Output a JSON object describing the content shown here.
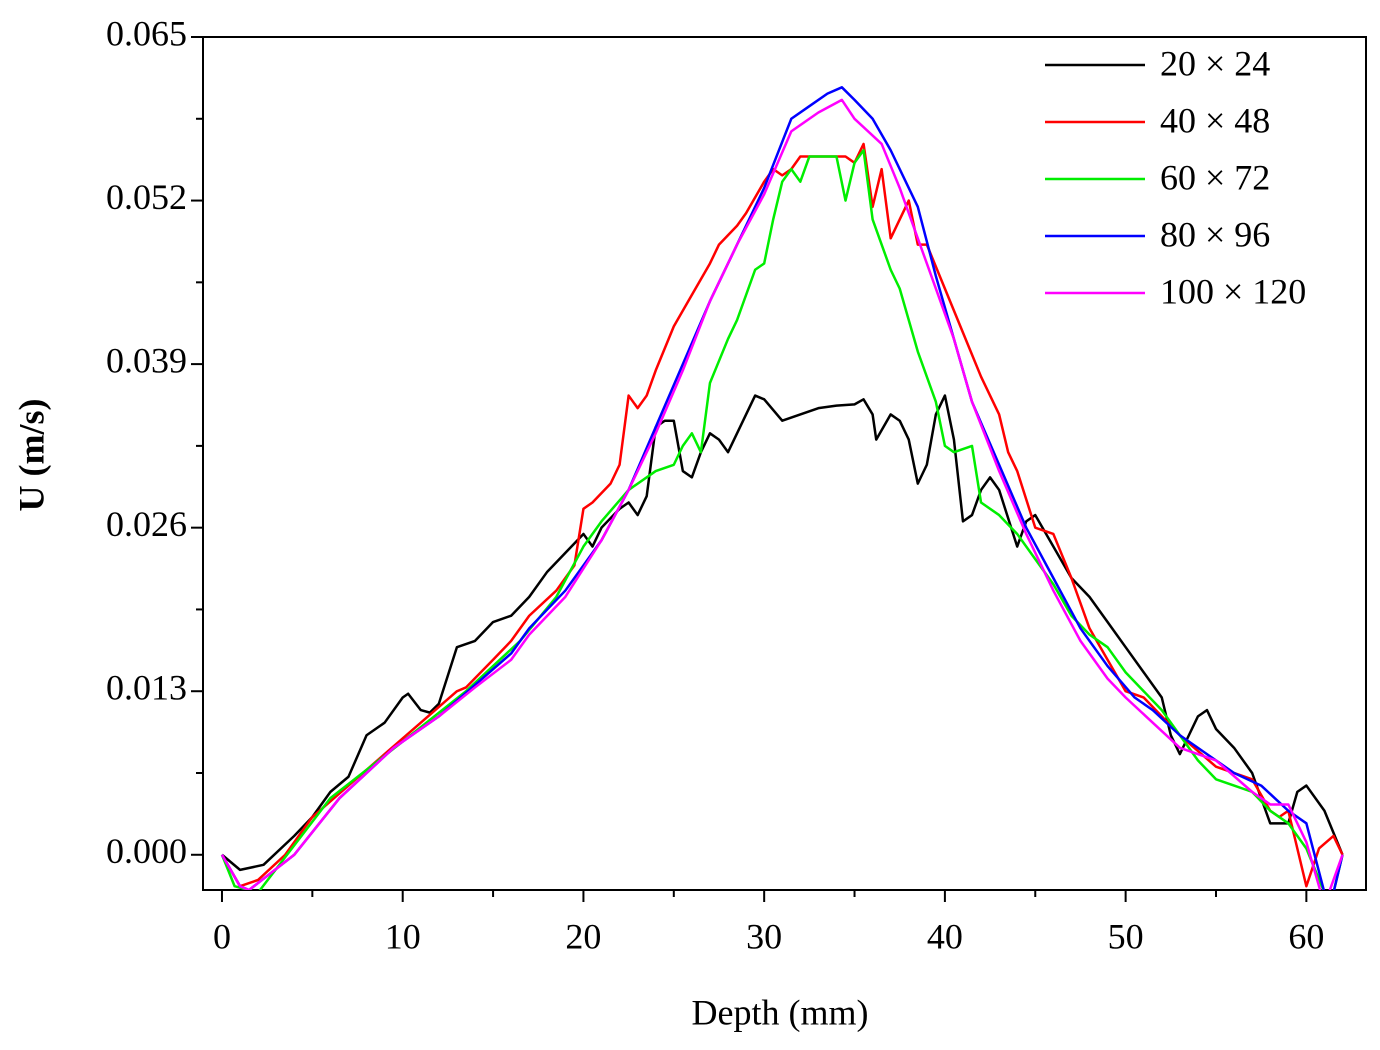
{
  "chart_data": {
    "type": "line",
    "xlabel": "Depth (mm)",
    "ylabel": "U (m/s)",
    "xlim": [
      -1.05,
      63.3
    ],
    "ylim": [
      -0.0028,
      0.065
    ],
    "xticks": [
      0,
      10,
      20,
      30,
      40,
      50,
      60
    ],
    "xticks_minor": [
      5,
      15,
      25,
      35,
      45,
      55
    ],
    "yticks": [
      {
        "value": 0,
        "label": "0.000"
      },
      0.013,
      0.026,
      0.039,
      0.052,
      0.065
    ],
    "yticks_minor": [
      0.0065,
      0.0195,
      0.0325,
      0.0455,
      0.0585
    ],
    "legend": "upper right",
    "series": [
      {
        "name": "20 × 24",
        "color": "#000000",
        "x": [
          0,
          1,
          2.3,
          4,
          5,
          6,
          7,
          8,
          9,
          10,
          10.3,
          11,
          11.5,
          12,
          13,
          14,
          15,
          16,
          17,
          18,
          19,
          20,
          20.5,
          21,
          22,
          22.5,
          23,
          23.5,
          24,
          24.5,
          25,
          25.5,
          26,
          26.5,
          27,
          27.5,
          28,
          29,
          29.5,
          30,
          31,
          32,
          33,
          34,
          35,
          35.5,
          36,
          36.2,
          37,
          37.5,
          38,
          38.5,
          39,
          39.5,
          40,
          40.5,
          41,
          41.5,
          42,
          42.5,
          43,
          44,
          44.5,
          45,
          46,
          47,
          48,
          49,
          50,
          51,
          52,
          52.5,
          53,
          54,
          54.5,
          55,
          56,
          57,
          58,
          59,
          59.5,
          60,
          61,
          62
        ],
        "values": [
          0,
          -0.0012,
          -0.0008,
          0.0015,
          0.003,
          0.005,
          0.0062,
          0.0095,
          0.0105,
          0.0125,
          0.0128,
          0.0115,
          0.0113,
          0.012,
          0.0165,
          0.017,
          0.0185,
          0.019,
          0.0205,
          0.0225,
          0.024,
          0.0255,
          0.0245,
          0.026,
          0.0275,
          0.028,
          0.027,
          0.0285,
          0.034,
          0.0345,
          0.0345,
          0.0305,
          0.03,
          0.032,
          0.0335,
          0.033,
          0.032,
          0.035,
          0.0365,
          0.0362,
          0.0345,
          0.035,
          0.0355,
          0.0357,
          0.0358,
          0.0362,
          0.035,
          0.033,
          0.035,
          0.0345,
          0.033,
          0.0295,
          0.031,
          0.035,
          0.0365,
          0.033,
          0.0265,
          0.027,
          0.029,
          0.03,
          0.029,
          0.0245,
          0.0265,
          0.027,
          0.0245,
          0.022,
          0.0205,
          0.0185,
          0.0165,
          0.0145,
          0.0125,
          0.0095,
          0.008,
          0.011,
          0.0115,
          0.01,
          0.0085,
          0.0065,
          0.0025,
          0.0025,
          0.005,
          0.0055,
          0.0035,
          0
        ]
      },
      {
        "name": "40 × 48",
        "color": "#ff0000",
        "x": [
          0,
          1,
          2,
          3.5,
          5,
          7,
          9,
          11,
          13,
          13.5,
          15,
          16,
          17,
          18.5,
          19.5,
          20,
          20.5,
          21.5,
          22,
          22.5,
          23,
          23.5,
          24,
          25,
          26,
          27,
          27.5,
          28.5,
          29,
          30,
          30.5,
          31,
          31.5,
          32,
          33,
          34,
          34.5,
          35,
          35.5,
          36,
          36.5,
          37,
          38,
          38.5,
          39,
          40,
          41,
          42,
          43,
          43.5,
          44,
          45,
          46,
          47,
          48,
          49,
          50,
          51,
          52,
          53,
          55,
          57,
          58,
          58.5,
          59,
          60,
          60.7,
          61.5,
          62
        ],
        "values": [
          0,
          -0.0025,
          -0.002,
          0,
          0.003,
          0.0055,
          0.008,
          0.0105,
          0.013,
          0.0133,
          0.0155,
          0.017,
          0.019,
          0.021,
          0.023,
          0.0275,
          0.028,
          0.0295,
          0.031,
          0.0365,
          0.0355,
          0.0365,
          0.0385,
          0.042,
          0.0445,
          0.047,
          0.0485,
          0.05,
          0.051,
          0.0535,
          0.0545,
          0.054,
          0.0545,
          0.0555,
          0.0555,
          0.0555,
          0.0555,
          0.055,
          0.0565,
          0.0515,
          0.0545,
          0.049,
          0.052,
          0.0485,
          0.0485,
          0.045,
          0.0415,
          0.038,
          0.035,
          0.032,
          0.0305,
          0.026,
          0.0255,
          0.022,
          0.018,
          0.0155,
          0.013,
          0.0125,
          0.011,
          0.0095,
          0.007,
          0.006,
          0.0035,
          0.003,
          0.0035,
          -0.0025,
          0.0005,
          0.0015,
          0
        ]
      },
      {
        "name": "60 × 72",
        "color": "#00ee00",
        "x": [
          0,
          0.7,
          2,
          6,
          10,
          13.5,
          16.5,
          18.5,
          20,
          21,
          22.5,
          24,
          25,
          25.5,
          26,
          26.5,
          27,
          28,
          28.5,
          29.5,
          30,
          30.5,
          31,
          31.5,
          32,
          32.5,
          34,
          34.5,
          35,
          35.5,
          36,
          37,
          37.5,
          38.5,
          39.5,
          40,
          40.5,
          41.5,
          42,
          43,
          44,
          45,
          46,
          47,
          48,
          49,
          50,
          51,
          52,
          53,
          54,
          55,
          56,
          57,
          58,
          59,
          60,
          61,
          61.5,
          62
        ],
        "values": [
          0,
          -0.0025,
          -0.003,
          0.0045,
          0.009,
          0.013,
          0.017,
          0.0205,
          0.0245,
          0.0265,
          0.029,
          0.0305,
          0.031,
          0.0325,
          0.0335,
          0.032,
          0.0375,
          0.041,
          0.0425,
          0.0465,
          0.047,
          0.0505,
          0.0535,
          0.0545,
          0.0535,
          0.0555,
          0.0555,
          0.052,
          0.055,
          0.056,
          0.0505,
          0.0465,
          0.045,
          0.04,
          0.036,
          0.0325,
          0.032,
          0.0325,
          0.028,
          0.027,
          0.0255,
          0.0235,
          0.0215,
          0.019,
          0.0175,
          0.0165,
          0.0145,
          0.013,
          0.0115,
          0.0095,
          0.0075,
          0.006,
          0.0055,
          0.005,
          0.0035,
          0.0025,
          0.0005,
          -0.003,
          -0.003,
          0
        ]
      },
      {
        "name": "80 × 96",
        "color": "#0000ff",
        "x": [
          0,
          1,
          1.5,
          4,
          6.5,
          9.5,
          12,
          14,
          16,
          17,
          19,
          21,
          22.5,
          24,
          25.5,
          27,
          28.5,
          30,
          31.5,
          32.5,
          33.5,
          34.3,
          35,
          36,
          37,
          38.5,
          39.5,
          40.5,
          41.5,
          43,
          44.5,
          46,
          47.5,
          49,
          50.5,
          51.5,
          53,
          54.5,
          56,
          57.5,
          59,
          60,
          61,
          61.5,
          62
        ],
        "values": [
          0,
          -0.0025,
          -0.0028,
          0,
          0.0045,
          0.0085,
          0.011,
          0.0135,
          0.016,
          0.018,
          0.021,
          0.025,
          0.029,
          0.034,
          0.039,
          0.044,
          0.0485,
          0.053,
          0.0585,
          0.0595,
          0.0605,
          0.061,
          0.06,
          0.0585,
          0.056,
          0.0515,
          0.046,
          0.041,
          0.036,
          0.031,
          0.026,
          0.022,
          0.018,
          0.015,
          0.0125,
          0.0115,
          0.0095,
          0.008,
          0.0065,
          0.0055,
          0.0035,
          0.0025,
          -0.003,
          -0.003,
          0
        ]
      },
      {
        "name": "100 × 120",
        "color": "#ff00ff",
        "x": [
          0,
          1,
          1.5,
          4,
          6.5,
          9.5,
          12,
          14,
          16,
          17,
          19,
          21,
          22.5,
          24,
          25.5,
          27,
          28.5,
          30,
          31.5,
          33,
          34.3,
          35,
          36.5,
          37.5,
          39,
          40.5,
          41.5,
          43,
          44.5,
          46,
          47.5,
          49,
          50,
          51.5,
          53,
          55,
          57,
          58,
          59,
          60,
          61,
          62
        ],
        "values": [
          0,
          -0.0025,
          -0.0028,
          0,
          0.0045,
          0.0085,
          0.011,
          0.0133,
          0.0155,
          0.0175,
          0.0205,
          0.025,
          0.029,
          0.0335,
          0.0385,
          0.044,
          0.0485,
          0.0525,
          0.0575,
          0.059,
          0.06,
          0.0585,
          0.0565,
          0.053,
          0.047,
          0.041,
          0.036,
          0.0305,
          0.0255,
          0.021,
          0.017,
          0.014,
          0.0125,
          0.0105,
          0.0085,
          0.0075,
          0.005,
          0.004,
          0.004,
          0.001,
          -0.004,
          0
        ]
      }
    ]
  }
}
